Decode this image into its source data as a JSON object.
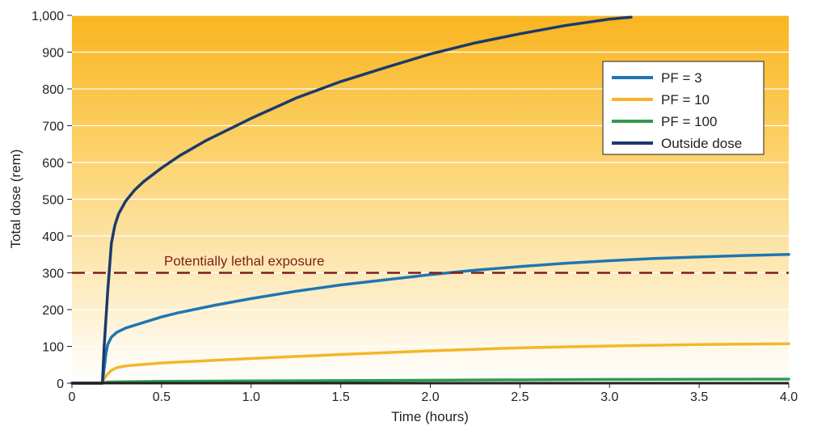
{
  "chart_data": {
    "type": "line",
    "xlabel": "Time (hours)",
    "ylabel": "Total dose (rem)",
    "xlim": [
      0,
      4.0
    ],
    "ylim": [
      0,
      1000
    ],
    "x_ticks": [
      0,
      0.5,
      1.0,
      1.5,
      2.0,
      2.5,
      3.0,
      3.5,
      4.0
    ],
    "x_tick_labels": [
      "0",
      "0.5",
      "1.0",
      "1.5",
      "2.0",
      "2.5",
      "3.0",
      "3.5",
      "4.0"
    ],
    "y_ticks": [
      0,
      100,
      200,
      300,
      400,
      500,
      600,
      700,
      800,
      900,
      1000
    ],
    "y_tick_labels": [
      "0",
      "100",
      "200",
      "300",
      "400",
      "500",
      "600",
      "700",
      "800",
      "900",
      "1,000"
    ],
    "grid": "horizontal",
    "background": {
      "top": "#f9b51f",
      "bottom": "#ffffff"
    },
    "legend_position": "top-right",
    "reference_line": {
      "y": 300,
      "label": "Potentially lethal exposure",
      "color": "#7f1d1d",
      "style": "dashed"
    },
    "series": [
      {
        "name": "PF = 3",
        "color": "#1f75b4",
        "x": [
          0,
          0.17,
          0.18,
          0.19,
          0.2,
          0.22,
          0.25,
          0.3,
          0.4,
          0.5,
          0.6,
          0.8,
          1.0,
          1.25,
          1.5,
          1.75,
          2.0,
          2.25,
          2.5,
          2.75,
          3.0,
          3.25,
          3.5,
          3.75,
          4.0
        ],
        "y": [
          0,
          0,
          40,
          80,
          105,
          125,
          138,
          150,
          165,
          180,
          192,
          212,
          230,
          250,
          267,
          281,
          295,
          307,
          317,
          326,
          333,
          339,
          343,
          347,
          350
        ]
      },
      {
        "name": "PF = 10",
        "color": "#f4b62a",
        "x": [
          0,
          0.17,
          0.18,
          0.2,
          0.22,
          0.25,
          0.3,
          0.5,
          0.75,
          1.0,
          1.5,
          2.0,
          2.5,
          3.0,
          3.5,
          4.0
        ],
        "y": [
          0,
          0,
          12,
          25,
          35,
          42,
          47,
          55,
          61,
          67,
          78,
          88,
          96,
          101,
          105,
          107
        ]
      },
      {
        "name": "PF = 100",
        "color": "#2e9a4e",
        "x": [
          0,
          0.17,
          0.2,
          0.3,
          0.5,
          1.0,
          2.0,
          3.0,
          4.0
        ],
        "y": [
          0,
          0,
          3,
          4,
          5,
          6,
          8,
          10,
          11
        ]
      },
      {
        "name": "Outside dose",
        "color": "#1c3a6b",
        "x": [
          0,
          0.17,
          0.18,
          0.2,
          0.22,
          0.24,
          0.26,
          0.3,
          0.35,
          0.4,
          0.5,
          0.6,
          0.75,
          1.0,
          1.25,
          1.5,
          1.75,
          2.0,
          2.25,
          2.5,
          2.75,
          3.0,
          3.12
        ],
        "y": [
          0,
          0,
          100,
          250,
          380,
          430,
          460,
          495,
          525,
          548,
          585,
          618,
          660,
          720,
          775,
          820,
          858,
          895,
          925,
          950,
          972,
          990,
          995
        ]
      }
    ]
  }
}
